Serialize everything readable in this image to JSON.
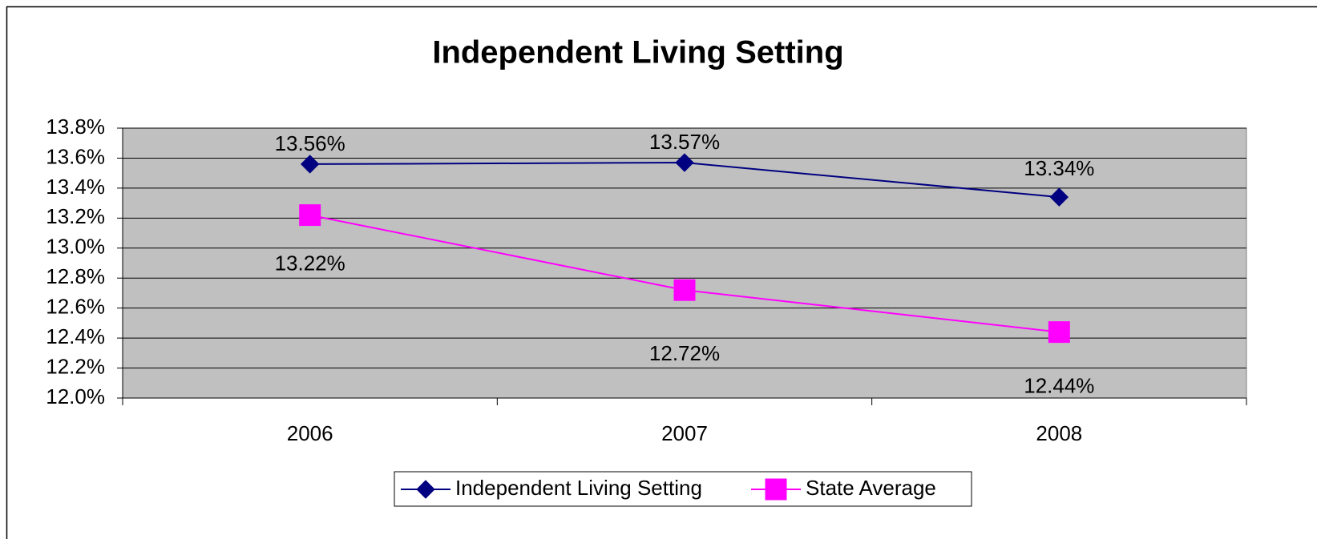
{
  "chart_data": {
    "type": "line",
    "title": "Independent Living Setting",
    "categories": [
      "2006",
      "2007",
      "2008"
    ],
    "series": [
      {
        "name": "Independent Living Setting",
        "color": "#000080",
        "marker": "diamond",
        "values": [
          13.56,
          13.57,
          13.34
        ],
        "value_labels": [
          "13.56%",
          "13.57%",
          "13.34%"
        ]
      },
      {
        "name": "State Average",
        "color": "#ff00ff",
        "marker": "square",
        "values": [
          13.22,
          12.72,
          12.44
        ],
        "value_labels": [
          "13.22%",
          "12.72%",
          "12.44%"
        ]
      }
    ],
    "ylim": [
      12.0,
      13.8
    ],
    "yticks": [
      {
        "value": 12.0,
        "label": "12.0%"
      },
      {
        "value": 12.2,
        "label": "12.2%"
      },
      {
        "value": 12.4,
        "label": "12.4%"
      },
      {
        "value": 12.6,
        "label": "12.6%"
      },
      {
        "value": 12.8,
        "label": "12.8%"
      },
      {
        "value": 13.0,
        "label": "13.0%"
      },
      {
        "value": 13.2,
        "label": "13.2%"
      },
      {
        "value": 13.4,
        "label": "13.4%"
      },
      {
        "value": 13.6,
        "label": "13.6%"
      },
      {
        "value": 13.8,
        "label": "13.8%"
      }
    ],
    "grid": true,
    "legend": "bottom",
    "plot_background": "#c0c0c0"
  }
}
